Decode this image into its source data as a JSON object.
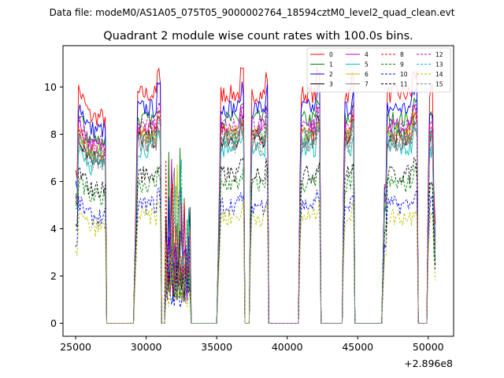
{
  "chart_data": {
    "type": "line",
    "suptitle": "Data file: modeM0/AS1A05_075T05_9000002764_18594cztM0_level2_quad_clean.evt",
    "title": "Quadrant 2 module wise count rates with 100.0s bins.",
    "xlabel": "",
    "ylabel": "",
    "x_offset_label": "+2.896e8",
    "xlim": [
      24100,
      51800
    ],
    "ylim": [
      -0.55,
      11.75
    ],
    "x_ticks": [
      25000,
      30000,
      35000,
      40000,
      45000,
      50000
    ],
    "x_tick_labels": [
      "25000",
      "30000",
      "35000",
      "40000",
      "45000",
      "50000"
    ],
    "y_ticks": [
      0,
      2,
      4,
      6,
      8,
      10
    ],
    "y_tick_labels": [
      "0",
      "2",
      "4",
      "6",
      "8",
      "10"
    ],
    "bin_seconds": 100,
    "segments": [
      {
        "kind": "on",
        "x0": 25000,
        "x1": 27100,
        "shape": "decay"
      },
      {
        "kind": "off",
        "x0": 27200,
        "x1": 29100
      },
      {
        "kind": "on",
        "x0": 29300,
        "x1": 31000,
        "shape": "flat"
      },
      {
        "kind": "off",
        "x0": 31100,
        "x1": 31300
      },
      {
        "kind": "noisy",
        "x0": 31400,
        "x1": 33100
      },
      {
        "kind": "off",
        "x0": 33200,
        "x1": 35000
      },
      {
        "kind": "on",
        "x0": 35200,
        "x1": 36900,
        "shape": "flat"
      },
      {
        "kind": "off",
        "x0": 37000,
        "x1": 37300
      },
      {
        "kind": "on",
        "x0": 37400,
        "x1": 38600,
        "shape": "flat"
      },
      {
        "kind": "off",
        "x0": 38700,
        "x1": 40800
      },
      {
        "kind": "on",
        "x0": 40900,
        "x1": 42300,
        "shape": "flat"
      },
      {
        "kind": "off",
        "x0": 42400,
        "x1": 43900
      },
      {
        "kind": "on",
        "x0": 44000,
        "x1": 44700,
        "shape": "flat"
      },
      {
        "kind": "off",
        "x0": 44800,
        "x1": 46700
      },
      {
        "kind": "on",
        "x0": 46900,
        "x1": 49200,
        "shape": "flat"
      },
      {
        "kind": "off",
        "x0": 49300,
        "x1": 49900
      },
      {
        "kind": "on",
        "x0": 50000,
        "x1": 50500,
        "shape": "drop"
      }
    ],
    "series": [
      {
        "name": "0",
        "color": "#ff0000",
        "dash": "solid",
        "level": 9.7
      },
      {
        "name": "1",
        "color": "#008000",
        "dash": "solid",
        "level": 8.6
      },
      {
        "name": "2",
        "color": "#0000ff",
        "dash": "solid",
        "level": 9.1
      },
      {
        "name": "3",
        "color": "#000000",
        "dash": "solid",
        "level": 7.8
      },
      {
        "name": "4",
        "color": "#bf00bf",
        "dash": "solid",
        "level": 8.3
      },
      {
        "name": "5",
        "color": "#00bfbf",
        "dash": "solid",
        "level": 7.4
      },
      {
        "name": "6",
        "color": "#bfbf00",
        "dash": "solid",
        "level": 8.0
      },
      {
        "name": "7",
        "color": "#808080",
        "dash": "solid",
        "level": 7.7
      },
      {
        "name": "8",
        "color": "#ff0000",
        "dash": "dashed",
        "level": 8.0
      },
      {
        "name": "9",
        "color": "#008000",
        "dash": "dashed",
        "level": 5.9
      },
      {
        "name": "10",
        "color": "#0000ff",
        "dash": "dashed",
        "level": 5.0
      },
      {
        "name": "11",
        "color": "#000000",
        "dash": "dashed",
        "level": 6.3
      },
      {
        "name": "12",
        "color": "#bf00bf",
        "dash": "dashed",
        "level": 8.4
      },
      {
        "name": "13",
        "color": "#00bfbf",
        "dash": "dashed",
        "level": 7.9
      },
      {
        "name": "14",
        "color": "#bfbf00",
        "dash": "dashed",
        "level": 4.5
      },
      {
        "name": "15",
        "color": "#808080",
        "dash": "dashed",
        "level": 7.6
      }
    ],
    "legend_location": "upper right",
    "legend_columns": 4
  }
}
